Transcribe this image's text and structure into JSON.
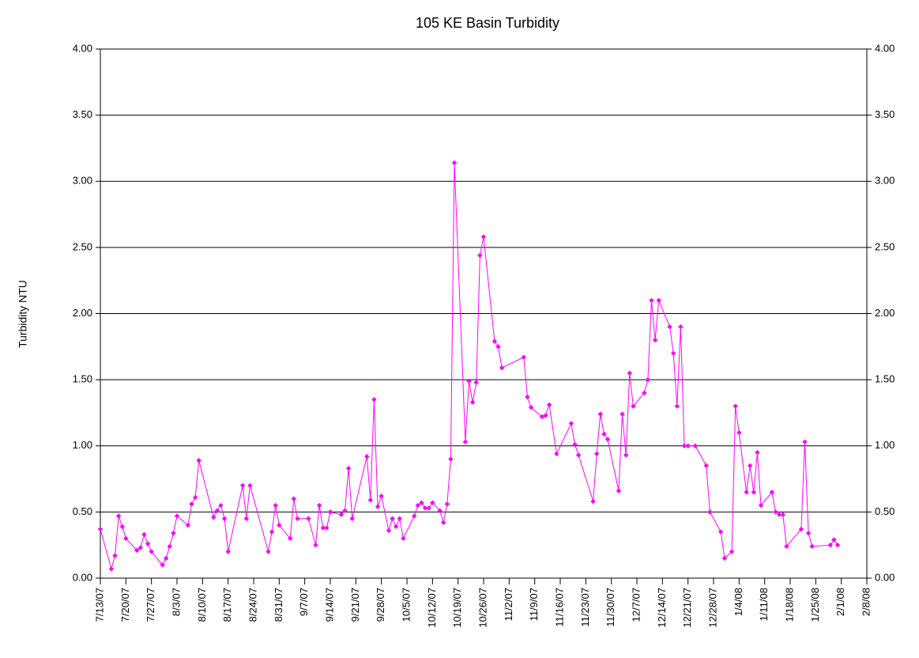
{
  "chart_data": {
    "type": "line",
    "title": "105 KE Basin Turbidity",
    "ylabel": "Turbidity NTU",
    "color": "#ff00ff",
    "grid": true,
    "x": [
      "7/13/07",
      "7/16/07",
      "7/17/07",
      "7/18/07",
      "7/19/07",
      "7/20/07",
      "7/23/07",
      "7/24/07",
      "7/25/07",
      "7/26/07",
      "7/27/07",
      "7/30/07",
      "7/31/07",
      "8/1/07",
      "8/2/07",
      "8/3/07",
      "8/6/07",
      "8/7/07",
      "8/8/07",
      "8/9/07",
      "8/13/07",
      "8/14/07",
      "8/15/07",
      "8/16/07",
      "8/17/07",
      "8/21/07",
      "8/22/07",
      "8/23/07",
      "8/28/07",
      "8/29/07",
      "8/30/07",
      "8/31/07",
      "9/3/07",
      "9/4/07",
      "9/5/07",
      "9/8/07",
      "9/10/07",
      "9/11/07",
      "9/12/07",
      "9/13/07",
      "9/14/07",
      "9/17/07",
      "9/18/07",
      "9/19/07",
      "9/20/07",
      "9/24/07",
      "9/25/07",
      "9/26/07",
      "9/27/07",
      "9/28/07",
      "9/30/07",
      "10/1/07",
      "10/2/07",
      "10/3/07",
      "10/4/07",
      "10/7/07",
      "10/8/07",
      "10/9/07",
      "10/10/07",
      "10/11/07",
      "10/12/07",
      "10/14/07",
      "10/15/07",
      "10/16/07",
      "10/17/07",
      "10/18/07",
      "10/21/07",
      "10/22/07",
      "10/23/07",
      "10/24/07",
      "10/25/07",
      "10/26/07",
      "10/29/07",
      "10/30/07",
      "10/31/07",
      "11/6/07",
      "11/7/07",
      "11/8/07",
      "11/11/07",
      "11/12/07",
      "11/13/07",
      "11/15/07",
      "11/19/07",
      "11/20/07",
      "11/21/07",
      "11/25/07",
      "11/26/07",
      "11/27/07",
      "11/28/07",
      "11/29/07",
      "12/2/07",
      "12/3/07",
      "12/4/07",
      "12/5/07",
      "12/6/07",
      "12/9/07",
      "12/10/07",
      "12/11/07",
      "12/12/07",
      "12/13/07",
      "12/16/07",
      "12/17/07",
      "12/18/07",
      "12/19/07",
      "12/20/07",
      "12/21/07",
      "12/23/07",
      "12/26/07",
      "12/27/07",
      "12/30/07",
      "12/31/07",
      "1/2/08",
      "1/3/08",
      "1/4/08",
      "1/6/08",
      "1/7/08",
      "1/8/08",
      "1/9/08",
      "1/10/08",
      "1/13/08",
      "1/14/08",
      "1/15/08",
      "1/16/08",
      "1/17/08",
      "1/21/08",
      "1/22/08",
      "1/23/08",
      "1/24/08",
      "1/29/08",
      "1/30/08",
      "1/31/08"
    ],
    "values": [
      0.37,
      0.07,
      0.17,
      0.47,
      0.39,
      0.3,
      0.21,
      0.23,
      0.33,
      0.26,
      0.2,
      0.1,
      0.15,
      0.24,
      0.34,
      0.47,
      0.4,
      0.56,
      0.61,
      0.89,
      0.46,
      0.51,
      0.55,
      0.45,
      0.2,
      0.7,
      0.45,
      0.7,
      0.2,
      0.35,
      0.55,
      0.4,
      0.3,
      0.6,
      0.45,
      0.45,
      0.25,
      0.55,
      0.38,
      0.38,
      0.5,
      0.48,
      0.51,
      0.83,
      0.45,
      0.92,
      0.59,
      1.35,
      0.54,
      0.62,
      0.36,
      0.45,
      0.39,
      0.45,
      0.3,
      0.47,
      0.55,
      0.57,
      0.53,
      0.53,
      0.57,
      0.51,
      0.42,
      0.56,
      0.9,
      3.14,
      1.03,
      1.49,
      1.33,
      1.48,
      2.44,
      2.58,
      1.79,
      1.75,
      1.59,
      1.67,
      1.37,
      1.29,
      1.22,
      1.23,
      1.31,
      0.94,
      1.17,
      1.01,
      0.93,
      0.58,
      0.94,
      1.24,
      1.09,
      1.05,
      0.66,
      1.24,
      0.93,
      1.55,
      1.3,
      1.4,
      1.5,
      2.1,
      1.8,
      2.1,
      1.9,
      1.7,
      1.3,
      1.9,
      1.0,
      1.0,
      1.0,
      0.85,
      0.5,
      0.35,
      0.15,
      0.2,
      1.3,
      1.1,
      0.65,
      0.85,
      0.65,
      0.95,
      0.55,
      0.65,
      0.5,
      0.48,
      0.48,
      0.24,
      0.37,
      1.03,
      0.34,
      0.24,
      0.25,
      0.29,
      0.25
    ],
    "xlim": [
      "7/13/07",
      "2/8/08"
    ],
    "xticks": [
      "7/13/07",
      "7/20/07",
      "7/27/07",
      "8/3/07",
      "8/10/07",
      "8/17/07",
      "8/24/07",
      "8/31/07",
      "9/7/07",
      "9/14/07",
      "9/21/07",
      "9/28/07",
      "10/5/07",
      "10/12/07",
      "10/19/07",
      "10/26/07",
      "11/2/07",
      "11/9/07",
      "11/16/07",
      "11/23/07",
      "11/30/07",
      "12/7/07",
      "12/14/07",
      "12/21/07",
      "12/28/07",
      "1/4/08",
      "1/11/08",
      "1/18/08",
      "1/25/08",
      "2/1/08",
      "2/8/08"
    ],
    "ylim": [
      0,
      4
    ],
    "yticks": [
      {
        "value": 0,
        "label": "0.00"
      },
      {
        "value": 0.5,
        "label": "0.50"
      },
      {
        "value": 1,
        "label": "1.00"
      },
      {
        "value": 1.5,
        "label": "1.50"
      },
      {
        "value": 2,
        "label": "2.00"
      },
      {
        "value": 2.5,
        "label": "2.50"
      },
      {
        "value": 3,
        "label": "3.00"
      },
      {
        "value": 3.5,
        "label": "3.50"
      },
      {
        "value": 4,
        "label": "4.00"
      }
    ],
    "y2lim": [
      0,
      4
    ],
    "y2ticks": [
      {
        "value": 0,
        "label": "0.00"
      },
      {
        "value": 0.5,
        "label": "0.50"
      },
      {
        "value": 1,
        "label": "1.00"
      },
      {
        "value": 1.5,
        "label": "1.50"
      },
      {
        "value": 2,
        "label": "2.00"
      },
      {
        "value": 2.5,
        "label": "2.50"
      },
      {
        "value": 3,
        "label": "3.00"
      },
      {
        "value": 3.5,
        "label": "3.50"
      },
      {
        "value": 4,
        "label": "4.00"
      }
    ]
  }
}
